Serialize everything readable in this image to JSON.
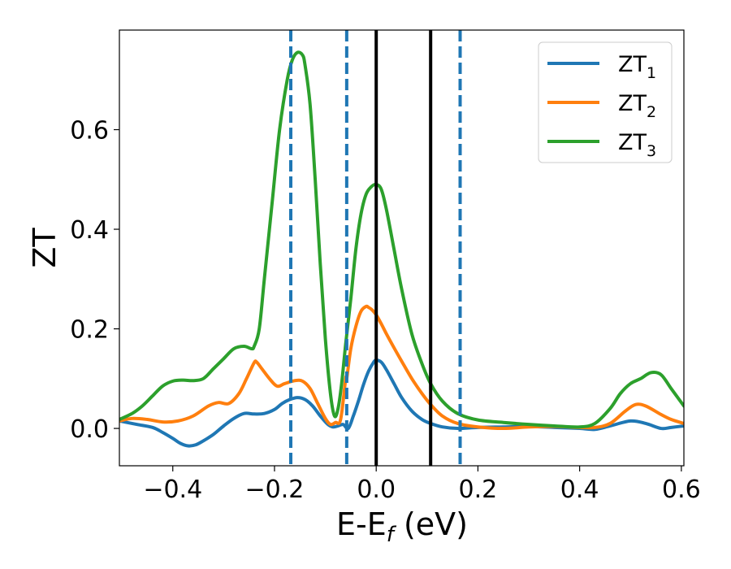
{
  "chart_data": {
    "type": "line",
    "title": "",
    "xlabel_main": "E-E",
    "xlabel_sub": "f",
    "xlabel_unit": " (eV)",
    "ylabel": "ZT",
    "xlim": [
      -0.505,
      0.605
    ],
    "ylim": [
      -0.075,
      0.8
    ],
    "x_ticks": [
      -0.4,
      -0.2,
      0.0,
      0.2,
      0.4,
      0.6
    ],
    "x_tick_labels": [
      "−0.4",
      "−0.2",
      "0.0",
      "0.2",
      "0.4",
      "0.6"
    ],
    "y_ticks": [
      0.0,
      0.2,
      0.4,
      0.6
    ],
    "y_tick_labels": [
      "0.0",
      "0.2",
      "0.4",
      "0.6"
    ],
    "grid": false,
    "legend_position": "top-right",
    "vlines_dashed": [
      -0.168,
      -0.058,
      0.165
    ],
    "vlines_solid": [
      0.0,
      0.107
    ],
    "vline_dashed_color": "#1f77b4",
    "vline_solid_color": "#000000",
    "series": [
      {
        "name": "ZT1",
        "base": "ZT",
        "sub": "1",
        "color": "#1f77b4",
        "x": [
          -0.505,
          -0.47,
          -0.44,
          -0.42,
          -0.4,
          -0.385,
          -0.37,
          -0.355,
          -0.34,
          -0.32,
          -0.3,
          -0.28,
          -0.26,
          -0.24,
          -0.22,
          -0.2,
          -0.185,
          -0.17,
          -0.155,
          -0.14,
          -0.125,
          -0.11,
          -0.095,
          -0.085,
          -0.075,
          -0.065,
          -0.055,
          -0.045,
          -0.035,
          -0.025,
          -0.015,
          -0.005,
          0.0,
          0.01,
          0.02,
          0.035,
          0.05,
          0.07,
          0.09,
          0.107,
          0.13,
          0.16,
          0.2,
          0.25,
          0.3,
          0.35,
          0.4,
          0.43,
          0.46,
          0.5,
          0.53,
          0.56,
          0.58,
          0.605
        ],
        "values": [
          0.015,
          0.008,
          0.002,
          -0.008,
          -0.02,
          -0.03,
          -0.035,
          -0.033,
          -0.025,
          -0.012,
          0.005,
          0.02,
          0.03,
          0.029,
          0.03,
          0.038,
          0.05,
          0.058,
          0.062,
          0.058,
          0.045,
          0.025,
          0.008,
          0.003,
          0.005,
          0.008,
          0.0,
          0.025,
          0.055,
          0.088,
          0.115,
          0.133,
          0.137,
          0.133,
          0.118,
          0.09,
          0.062,
          0.035,
          0.018,
          0.01,
          0.003,
          0.0,
          0.002,
          0.003,
          0.004,
          0.002,
          0.0,
          -0.002,
          0.005,
          0.015,
          0.01,
          0.0,
          0.002,
          0.005
        ]
      },
      {
        "name": "ZT2",
        "base": "ZT",
        "sub": "2",
        "color": "#ff7f0e",
        "x": [
          -0.505,
          -0.48,
          -0.45,
          -0.42,
          -0.39,
          -0.36,
          -0.33,
          -0.31,
          -0.29,
          -0.27,
          -0.255,
          -0.24,
          -0.235,
          -0.225,
          -0.21,
          -0.195,
          -0.18,
          -0.16,
          -0.145,
          -0.13,
          -0.115,
          -0.1,
          -0.09,
          -0.08,
          -0.07,
          -0.06,
          -0.058,
          -0.05,
          -0.04,
          -0.03,
          -0.02,
          -0.015,
          -0.008,
          0.0,
          0.01,
          0.02,
          0.035,
          0.05,
          0.07,
          0.09,
          0.107,
          0.13,
          0.16,
          0.2,
          0.25,
          0.3,
          0.35,
          0.4,
          0.43,
          0.46,
          0.49,
          0.51,
          0.53,
          0.56,
          0.58,
          0.605
        ],
        "values": [
          0.015,
          0.02,
          0.018,
          0.013,
          0.015,
          0.025,
          0.045,
          0.052,
          0.05,
          0.07,
          0.1,
          0.132,
          0.133,
          0.12,
          0.1,
          0.085,
          0.09,
          0.096,
          0.095,
          0.08,
          0.05,
          0.02,
          0.008,
          0.012,
          0.018,
          0.1,
          0.1,
          0.16,
          0.205,
          0.235,
          0.245,
          0.243,
          0.238,
          0.228,
          0.21,
          0.19,
          0.162,
          0.135,
          0.1,
          0.07,
          0.048,
          0.025,
          0.01,
          0.003,
          0.0,
          0.003,
          0.004,
          0.002,
          0.002,
          0.01,
          0.035,
          0.048,
          0.045,
          0.028,
          0.018,
          0.01
        ]
      },
      {
        "name": "ZT3",
        "base": "ZT",
        "sub": "3",
        "color": "#2ca02c",
        "x": [
          -0.505,
          -0.48,
          -0.46,
          -0.44,
          -0.42,
          -0.4,
          -0.38,
          -0.36,
          -0.34,
          -0.32,
          -0.3,
          -0.28,
          -0.26,
          -0.245,
          -0.24,
          -0.23,
          -0.22,
          -0.205,
          -0.19,
          -0.175,
          -0.165,
          -0.155,
          -0.145,
          -0.14,
          -0.13,
          -0.12,
          -0.11,
          -0.1,
          -0.09,
          -0.082,
          -0.075,
          -0.068,
          -0.06,
          -0.05,
          -0.04,
          -0.03,
          -0.02,
          -0.01,
          0.0,
          0.01,
          0.02,
          0.035,
          0.05,
          0.07,
          0.09,
          0.107,
          0.13,
          0.16,
          0.2,
          0.25,
          0.3,
          0.35,
          0.4,
          0.43,
          0.46,
          0.48,
          0.5,
          0.52,
          0.54,
          0.56,
          0.58,
          0.605
        ],
        "values": [
          0.018,
          0.03,
          0.045,
          0.065,
          0.085,
          0.095,
          0.097,
          0.096,
          0.1,
          0.12,
          0.14,
          0.16,
          0.165,
          0.16,
          0.165,
          0.2,
          0.3,
          0.45,
          0.6,
          0.7,
          0.74,
          0.755,
          0.75,
          0.73,
          0.65,
          0.5,
          0.33,
          0.18,
          0.07,
          0.025,
          0.04,
          0.09,
          0.17,
          0.26,
          0.36,
          0.43,
          0.47,
          0.485,
          0.49,
          0.48,
          0.44,
          0.36,
          0.28,
          0.19,
          0.13,
          0.09,
          0.055,
          0.03,
          0.017,
          0.012,
          0.008,
          0.005,
          0.003,
          0.01,
          0.04,
          0.07,
          0.09,
          0.1,
          0.112,
          0.108,
          0.08,
          0.045
        ]
      }
    ]
  }
}
